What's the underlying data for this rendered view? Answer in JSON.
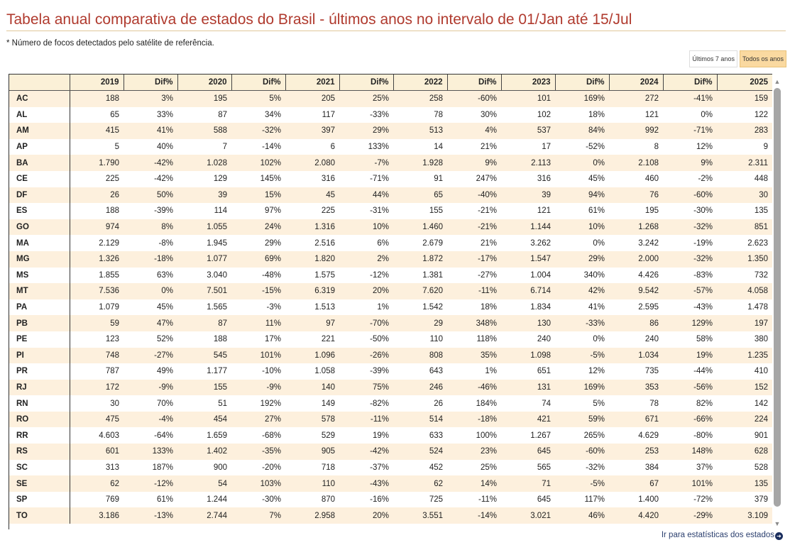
{
  "title": "Tabela anual comparativa de estados do Brasil - últimos anos no intervalo de 01/Jan até 15/Jul",
  "note": "* Número de focos detectados pelo satélite de referência.",
  "tabs": [
    {
      "label": "Últimos 7 anos",
      "selected": true
    },
    {
      "label": "Todos os anos",
      "selected": false
    }
  ],
  "colors": {
    "title": "#b03a2e",
    "row_alt": "#fdf0dd",
    "header_bg": "#fbf0d7",
    "tab_alt": "#fad9a0"
  },
  "table": {
    "columns": [
      "",
      "2019",
      "Dif%",
      "2020",
      "Dif%",
      "2021",
      "Dif%",
      "2022",
      "Dif%",
      "2023",
      "Dif%",
      "2024",
      "Dif%",
      "2025"
    ],
    "rows": [
      [
        "AC",
        "188",
        "3%",
        "195",
        "5%",
        "205",
        "25%",
        "258",
        "-60%",
        "101",
        "169%",
        "272",
        "-41%",
        "159"
      ],
      [
        "AL",
        "65",
        "33%",
        "87",
        "34%",
        "117",
        "-33%",
        "78",
        "30%",
        "102",
        "18%",
        "121",
        "0%",
        "122"
      ],
      [
        "AM",
        "415",
        "41%",
        "588",
        "-32%",
        "397",
        "29%",
        "513",
        "4%",
        "537",
        "84%",
        "992",
        "-71%",
        "283"
      ],
      [
        "AP",
        "5",
        "40%",
        "7",
        "-14%",
        "6",
        "133%",
        "14",
        "21%",
        "17",
        "-52%",
        "8",
        "12%",
        "9"
      ],
      [
        "BA",
        "1.790",
        "-42%",
        "1.028",
        "102%",
        "2.080",
        "-7%",
        "1.928",
        "9%",
        "2.113",
        "0%",
        "2.108",
        "9%",
        "2.311"
      ],
      [
        "CE",
        "225",
        "-42%",
        "129",
        "145%",
        "316",
        "-71%",
        "91",
        "247%",
        "316",
        "45%",
        "460",
        "-2%",
        "448"
      ],
      [
        "DF",
        "26",
        "50%",
        "39",
        "15%",
        "45",
        "44%",
        "65",
        "-40%",
        "39",
        "94%",
        "76",
        "-60%",
        "30"
      ],
      [
        "ES",
        "188",
        "-39%",
        "114",
        "97%",
        "225",
        "-31%",
        "155",
        "-21%",
        "121",
        "61%",
        "195",
        "-30%",
        "135"
      ],
      [
        "GO",
        "974",
        "8%",
        "1.055",
        "24%",
        "1.316",
        "10%",
        "1.460",
        "-21%",
        "1.144",
        "10%",
        "1.268",
        "-32%",
        "851"
      ],
      [
        "MA",
        "2.129",
        "-8%",
        "1.945",
        "29%",
        "2.516",
        "6%",
        "2.679",
        "21%",
        "3.262",
        "0%",
        "3.242",
        "-19%",
        "2.623"
      ],
      [
        "MG",
        "1.326",
        "-18%",
        "1.077",
        "69%",
        "1.820",
        "2%",
        "1.872",
        "-17%",
        "1.547",
        "29%",
        "2.000",
        "-32%",
        "1.350"
      ],
      [
        "MS",
        "1.855",
        "63%",
        "3.040",
        "-48%",
        "1.575",
        "-12%",
        "1.381",
        "-27%",
        "1.004",
        "340%",
        "4.426",
        "-83%",
        "732"
      ],
      [
        "MT",
        "7.536",
        "0%",
        "7.501",
        "-15%",
        "6.319",
        "20%",
        "7.620",
        "-11%",
        "6.714",
        "42%",
        "9.542",
        "-57%",
        "4.058"
      ],
      [
        "PA",
        "1.079",
        "45%",
        "1.565",
        "-3%",
        "1.513",
        "1%",
        "1.542",
        "18%",
        "1.834",
        "41%",
        "2.595",
        "-43%",
        "1.478"
      ],
      [
        "PB",
        "59",
        "47%",
        "87",
        "11%",
        "97",
        "-70%",
        "29",
        "348%",
        "130",
        "-33%",
        "86",
        "129%",
        "197"
      ],
      [
        "PE",
        "123",
        "52%",
        "188",
        "17%",
        "221",
        "-50%",
        "110",
        "118%",
        "240",
        "0%",
        "240",
        "58%",
        "380"
      ],
      [
        "PI",
        "748",
        "-27%",
        "545",
        "101%",
        "1.096",
        "-26%",
        "808",
        "35%",
        "1.098",
        "-5%",
        "1.034",
        "19%",
        "1.235"
      ],
      [
        "PR",
        "787",
        "49%",
        "1.177",
        "-10%",
        "1.058",
        "-39%",
        "643",
        "1%",
        "651",
        "12%",
        "735",
        "-44%",
        "410"
      ],
      [
        "RJ",
        "172",
        "-9%",
        "155",
        "-9%",
        "140",
        "75%",
        "246",
        "-46%",
        "131",
        "169%",
        "353",
        "-56%",
        "152"
      ],
      [
        "RN",
        "30",
        "70%",
        "51",
        "192%",
        "149",
        "-82%",
        "26",
        "184%",
        "74",
        "5%",
        "78",
        "82%",
        "142"
      ],
      [
        "RO",
        "475",
        "-4%",
        "454",
        "27%",
        "578",
        "-11%",
        "514",
        "-18%",
        "421",
        "59%",
        "671",
        "-66%",
        "224"
      ],
      [
        "RR",
        "4.603",
        "-64%",
        "1.659",
        "-68%",
        "529",
        "19%",
        "633",
        "100%",
        "1.267",
        "265%",
        "4.629",
        "-80%",
        "901"
      ],
      [
        "RS",
        "601",
        "133%",
        "1.402",
        "-35%",
        "905",
        "-42%",
        "524",
        "23%",
        "645",
        "-60%",
        "253",
        "148%",
        "628"
      ],
      [
        "SC",
        "313",
        "187%",
        "900",
        "-20%",
        "718",
        "-37%",
        "452",
        "25%",
        "565",
        "-32%",
        "384",
        "37%",
        "528"
      ],
      [
        "SE",
        "62",
        "-12%",
        "54",
        "103%",
        "110",
        "-43%",
        "62",
        "14%",
        "71",
        "-5%",
        "67",
        "101%",
        "135"
      ],
      [
        "SP",
        "769",
        "61%",
        "1.244",
        "-30%",
        "870",
        "-16%",
        "725",
        "-11%",
        "645",
        "117%",
        "1.400",
        "-72%",
        "379"
      ],
      [
        "TO",
        "3.186",
        "-13%",
        "2.744",
        "7%",
        "2.958",
        "20%",
        "3.551",
        "-14%",
        "3.021",
        "46%",
        "4.420",
        "-29%",
        "3.109"
      ]
    ]
  },
  "footer": {
    "link_label": "Ir para estatísticas dos estados",
    "link_icon": "arrow-right-circle-icon"
  }
}
